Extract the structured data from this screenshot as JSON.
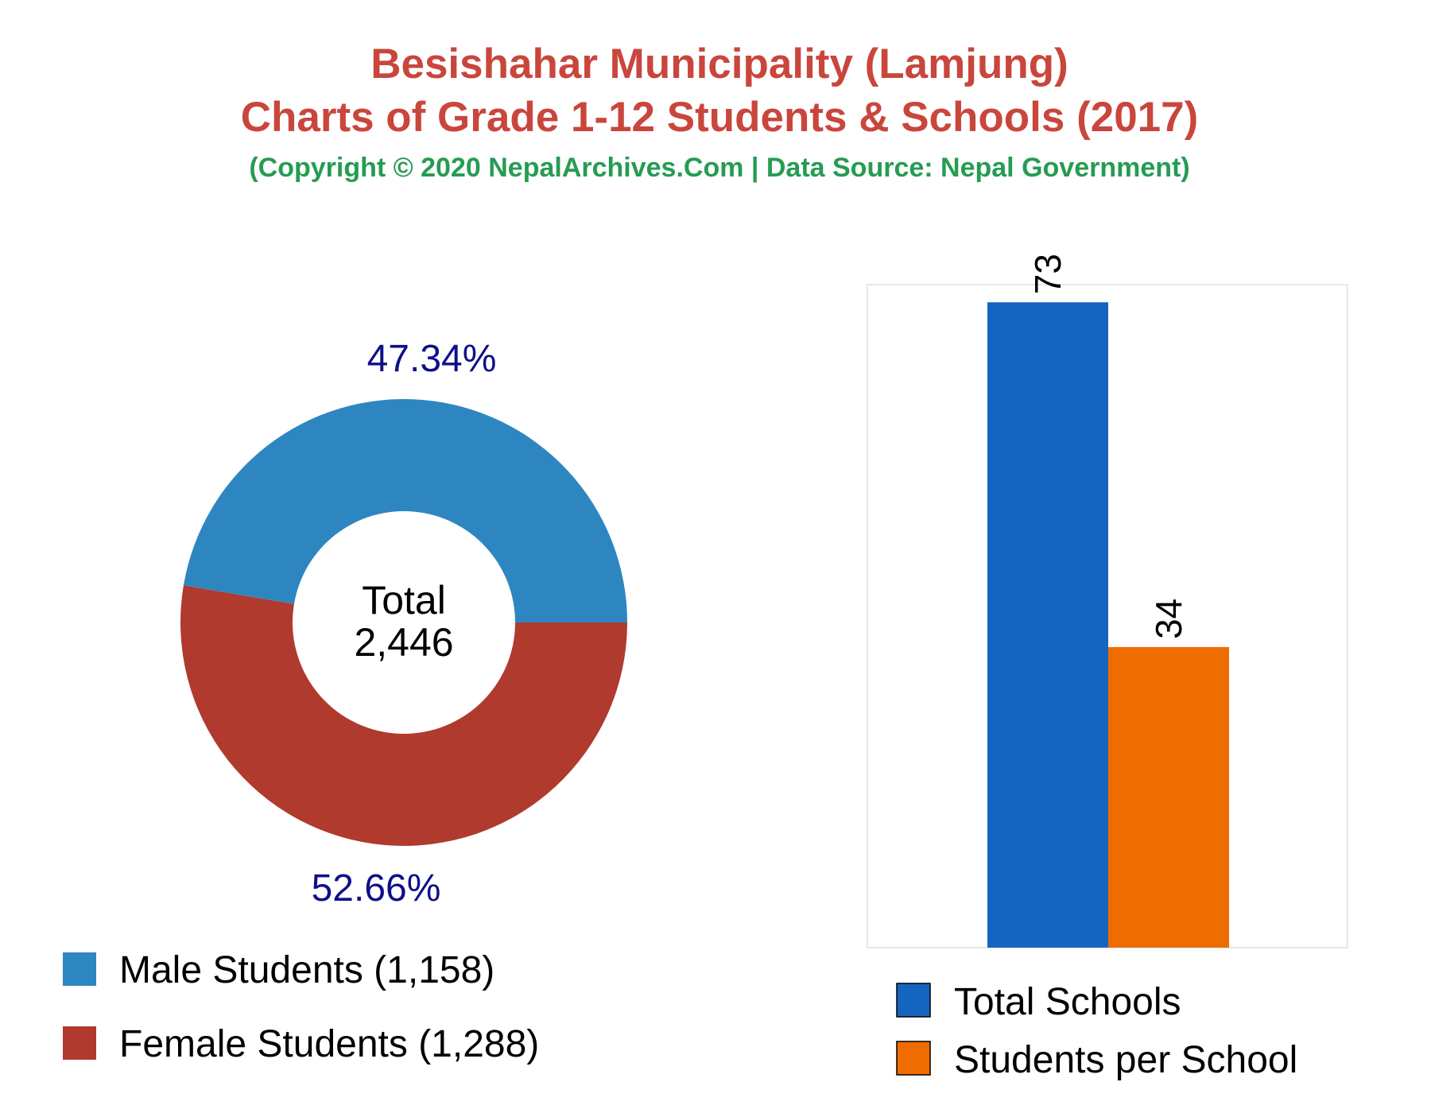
{
  "title_line1": "Besishahar Municipality (Lamjung)",
  "title_line2": "Charts of Grade 1-12 Students & Schools (2017)",
  "subtitle": "(Copyright © 2020 NepalArchives.Com | Data Source: Nepal Government)",
  "colors": {
    "title": "#c9463d",
    "subtitle": "#259c52",
    "percent_labels": "#0f0f8a",
    "male": "#2e86c1",
    "female": "#b03a2e",
    "total_schools": "#1565c0",
    "students_per_school": "#ef6c00"
  },
  "chart_data": [
    {
      "type": "pie",
      "variant": "donut",
      "center_label": "Total",
      "center_value": "2,446",
      "slices": [
        {
          "name": "Male Students",
          "legend_label": "Male Students (1,158)",
          "value": 1158,
          "percent_label": "47.34%",
          "color": "#2e86c1"
        },
        {
          "name": "Female Students",
          "legend_label": "Female Students (1,288)",
          "value": 1288,
          "percent_label": "52.66%",
          "color": "#b03a2e"
        }
      ],
      "legend_position": "bottom-left"
    },
    {
      "type": "bar",
      "categories": [
        "Total Schools",
        "Students per School"
      ],
      "values": [
        73,
        34
      ],
      "value_labels": [
        "73",
        "34"
      ],
      "colors": [
        "#1565c0",
        "#ef6c00"
      ],
      "ylim": [
        0,
        75
      ],
      "grid": false,
      "axes_visible": false,
      "legend_position": "bottom"
    }
  ]
}
